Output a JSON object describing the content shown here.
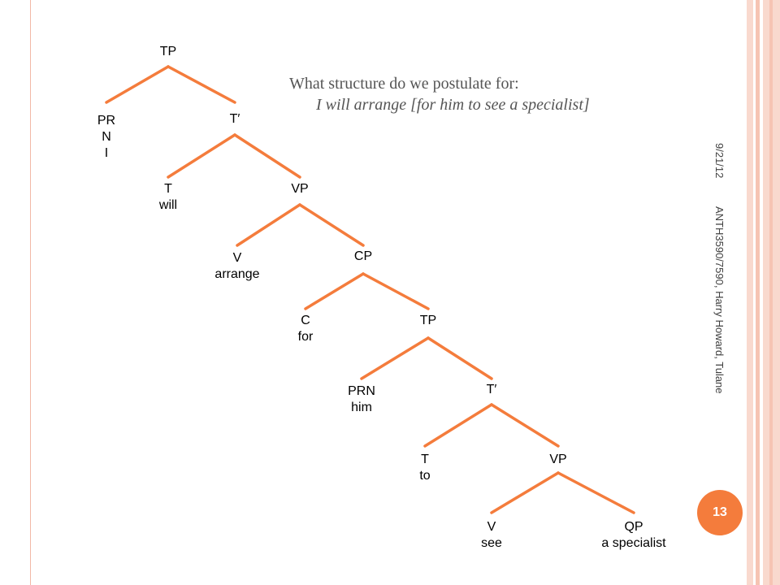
{
  "slide": {
    "title_line1": "What structure do we postulate for:",
    "title_line2": "I will arrange [for him to see a specialist]",
    "date": "9/21/12",
    "course": "ANTH3590/7590, Harry Howard, Tulane",
    "page_number": "13"
  },
  "colors": {
    "branch": "#f47c3c",
    "badge": "#f47c3c",
    "border_light": "#f9d9ce",
    "border_mid": "#f6c4b3"
  },
  "tree": {
    "nodes": [
      {
        "id": "tp1",
        "label": [
          "TP"
        ]
      },
      {
        "id": "prn1",
        "label": [
          "PR",
          "N",
          "I"
        ]
      },
      {
        "id": "tbar1",
        "label": [
          "T′"
        ]
      },
      {
        "id": "t1",
        "label": [
          "T",
          "will"
        ]
      },
      {
        "id": "vp1",
        "label": [
          "VP"
        ]
      },
      {
        "id": "v1",
        "label": [
          "V",
          "arrange"
        ]
      },
      {
        "id": "cp1",
        "label": [
          "CP"
        ]
      },
      {
        "id": "c1",
        "label": [
          "C",
          "for"
        ]
      },
      {
        "id": "tp2",
        "label": [
          "TP"
        ]
      },
      {
        "id": "prn2",
        "label": [
          "PRN",
          "him"
        ]
      },
      {
        "id": "tbar2",
        "label": [
          "T′"
        ]
      },
      {
        "id": "t2",
        "label": [
          "T",
          "to"
        ]
      },
      {
        "id": "vp2",
        "label": [
          "VP"
        ]
      },
      {
        "id": "v2",
        "label": [
          "V",
          "see"
        ]
      },
      {
        "id": "qp1",
        "label": [
          "QP",
          "a specialist"
        ]
      }
    ],
    "edges": [
      [
        "tp1",
        "prn1"
      ],
      [
        "tp1",
        "tbar1"
      ],
      [
        "tbar1",
        "t1"
      ],
      [
        "tbar1",
        "vp1"
      ],
      [
        "vp1",
        "v1"
      ],
      [
        "vp1",
        "cp1"
      ],
      [
        "cp1",
        "c1"
      ],
      [
        "cp1",
        "tp2"
      ],
      [
        "tp2",
        "prn2"
      ],
      [
        "tp2",
        "tbar2"
      ],
      [
        "tbar2",
        "t2"
      ],
      [
        "tbar2",
        "vp2"
      ],
      [
        "vp2",
        "v2"
      ],
      [
        "vp2",
        "qp1"
      ]
    ]
  }
}
